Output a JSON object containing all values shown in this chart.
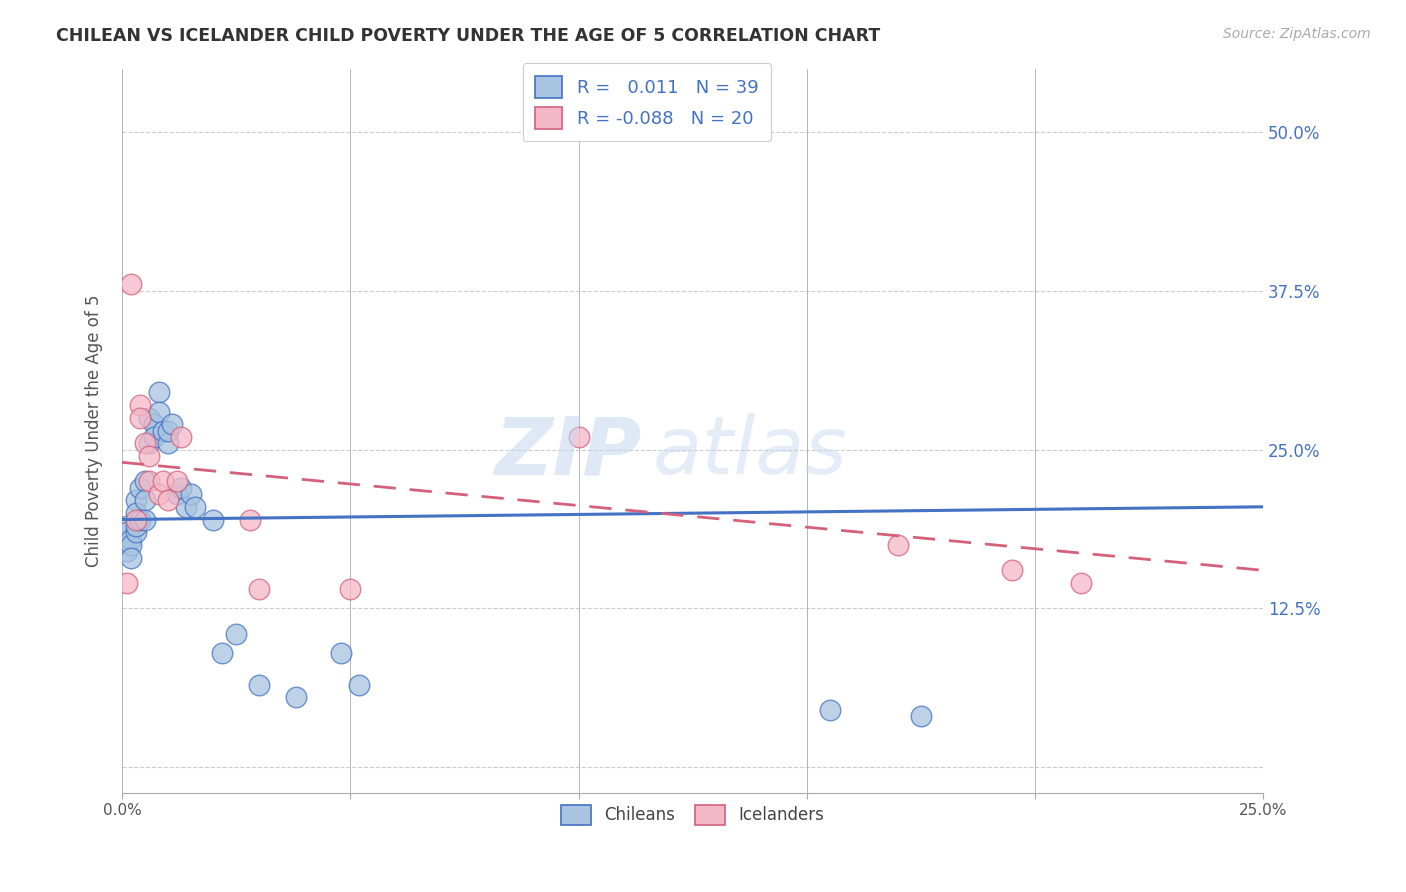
{
  "title": "CHILEAN VS ICELANDER CHILD POVERTY UNDER THE AGE OF 5 CORRELATION CHART",
  "source": "Source: ZipAtlas.com",
  "ylabel": "Child Poverty Under the Age of 5",
  "xlim": [
    0.0,
    0.25
  ],
  "ylim": [
    -0.02,
    0.55
  ],
  "yticks": [
    0.0,
    0.125,
    0.25,
    0.375,
    0.5
  ],
  "ytick_labels": [
    "",
    "12.5%",
    "25.0%",
    "37.5%",
    "50.0%"
  ],
  "xticks": [
    0.0,
    0.05,
    0.1,
    0.15,
    0.2,
    0.25
  ],
  "xtick_labels": [
    "0.0%",
    "",
    "",
    "",
    "",
    "25.0%"
  ],
  "chilean_R": 0.011,
  "chilean_N": 39,
  "icelander_R": -0.088,
  "icelander_N": 20,
  "chilean_color": "#a8c4e0",
  "icelander_color": "#f4b8c8",
  "chilean_line_color": "#4472c4",
  "icelander_line_color": "#d4607a",
  "chilean_trend_start_y": 0.195,
  "chilean_trend_end_y": 0.205,
  "icelander_trend_start_y": 0.24,
  "icelander_trend_end_y": 0.155,
  "chileans_x": [
    0.001,
    0.001,
    0.001,
    0.002,
    0.002,
    0.002,
    0.003,
    0.003,
    0.003,
    0.003,
    0.004,
    0.004,
    0.005,
    0.005,
    0.005,
    0.006,
    0.006,
    0.007,
    0.007,
    0.008,
    0.008,
    0.009,
    0.01,
    0.01,
    0.011,
    0.012,
    0.013,
    0.014,
    0.015,
    0.016,
    0.02,
    0.022,
    0.025,
    0.03,
    0.038,
    0.048,
    0.052,
    0.155,
    0.175
  ],
  "chileans_y": [
    0.19,
    0.185,
    0.17,
    0.18,
    0.175,
    0.165,
    0.185,
    0.21,
    0.2,
    0.19,
    0.195,
    0.22,
    0.225,
    0.21,
    0.195,
    0.275,
    0.255,
    0.27,
    0.26,
    0.295,
    0.28,
    0.265,
    0.255,
    0.265,
    0.27,
    0.215,
    0.22,
    0.205,
    0.215,
    0.205,
    0.195,
    0.09,
    0.105,
    0.065,
    0.055,
    0.09,
    0.065,
    0.045,
    0.04
  ],
  "icelanders_x": [
    0.001,
    0.002,
    0.003,
    0.004,
    0.004,
    0.005,
    0.006,
    0.006,
    0.008,
    0.009,
    0.01,
    0.012,
    0.013,
    0.028,
    0.03,
    0.05,
    0.1,
    0.17,
    0.195,
    0.21
  ],
  "icelanders_y": [
    0.145,
    0.38,
    0.195,
    0.285,
    0.275,
    0.255,
    0.245,
    0.225,
    0.215,
    0.225,
    0.21,
    0.225,
    0.26,
    0.195,
    0.14,
    0.14,
    0.26,
    0.175,
    0.155,
    0.145
  ],
  "watermark_zip_color": "#c5d8ee",
  "watermark_atlas_color": "#c5d8ee"
}
